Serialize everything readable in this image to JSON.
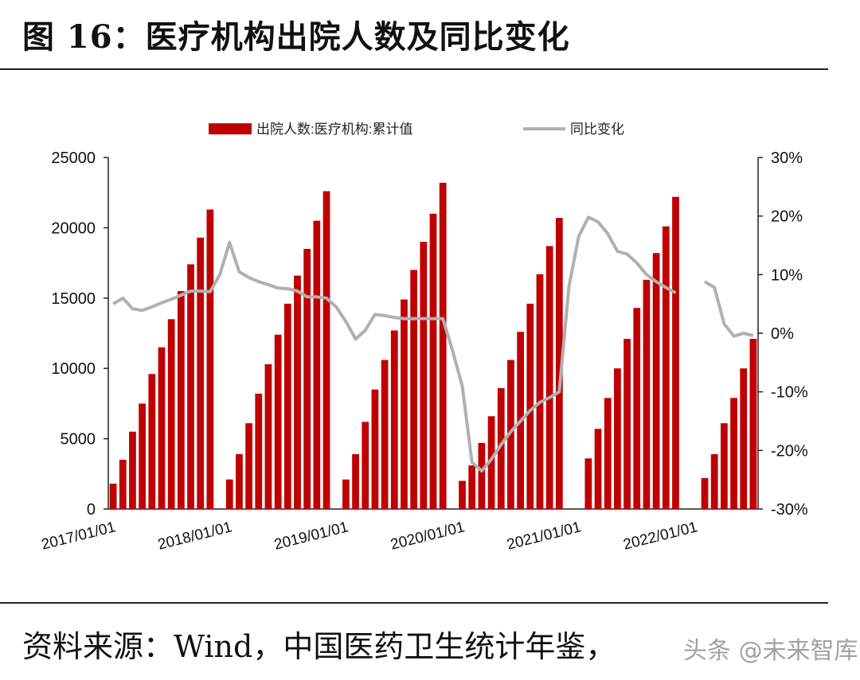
{
  "header": {
    "title": "图 16：医疗机构出院人数及同比变化"
  },
  "footer": {
    "source": "资料来源：Wind，中国医药卫生统计年鉴，",
    "watermark": "头条 @未来智库"
  },
  "colors": {
    "bar": "#c00000",
    "line": "#b0b0b0"
  },
  "chart_data": {
    "type": "bar",
    "legend": {
      "placement": "top"
    },
    "y_left": {
      "ylim": [
        0,
        25000
      ],
      "ticks": [
        "0",
        "5000",
        "10000",
        "15000",
        "20000",
        "25000"
      ]
    },
    "y_right": {
      "ylim": [
        -0.3,
        0.3
      ],
      "ticks": [
        "-30%",
        "-20%",
        "-10%",
        "0%",
        "10%",
        "20%",
        "30%"
      ]
    },
    "x_tick_labels": [
      "2017/01/01",
      "2018/01/01",
      "2019/01/01",
      "2020/01/01",
      "2021/01/01",
      "2022/01/01"
    ],
    "series": [
      {
        "name": "出院人数:医疗机构:累计值",
        "kind": "bar",
        "axis": "left",
        "values": [
          1800,
          3500,
          5500,
          7500,
          9600,
          11500,
          13500,
          15500,
          17400,
          19300,
          21300,
          null,
          2100,
          3900,
          6100,
          8200,
          10300,
          12400,
          14600,
          16600,
          18500,
          20500,
          22600,
          null,
          2100,
          3900,
          6200,
          8500,
          10600,
          12700,
          14900,
          17000,
          19000,
          21000,
          23200,
          null,
          2000,
          3100,
          4700,
          6600,
          8600,
          10600,
          12600,
          14600,
          16700,
          18700,
          20700,
          null,
          null,
          3600,
          5700,
          7900,
          10000,
          12100,
          14300,
          16300,
          18200,
          20100,
          22200,
          null,
          null,
          2200,
          3900,
          6100,
          7900,
          10000,
          12100
        ]
      },
      {
        "name": "同比变化",
        "kind": "line",
        "axis": "right",
        "values": [
          0.05,
          0.06,
          0.042,
          0.039,
          0.045,
          0.052,
          0.058,
          0.065,
          0.072,
          0.072,
          0.071,
          0.1,
          0.155,
          0.105,
          0.095,
          0.088,
          0.083,
          0.077,
          0.076,
          0.072,
          0.062,
          0.062,
          0.06,
          0.045,
          0.02,
          -0.01,
          0.005,
          0.032,
          0.03,
          0.027,
          0.025,
          0.025,
          0.025,
          0.025,
          0.025,
          -0.03,
          -0.09,
          -0.22,
          -0.235,
          -0.215,
          -0.19,
          -0.168,
          -0.15,
          -0.132,
          -0.118,
          -0.11,
          -0.1,
          0.08,
          0.165,
          0.198,
          0.19,
          0.17,
          0.14,
          0.135,
          0.12,
          0.1,
          0.088,
          0.078,
          0.069,
          null,
          null,
          0.088,
          0.078,
          0.016,
          -0.005,
          0.0,
          -0.004
        ]
      }
    ]
  }
}
